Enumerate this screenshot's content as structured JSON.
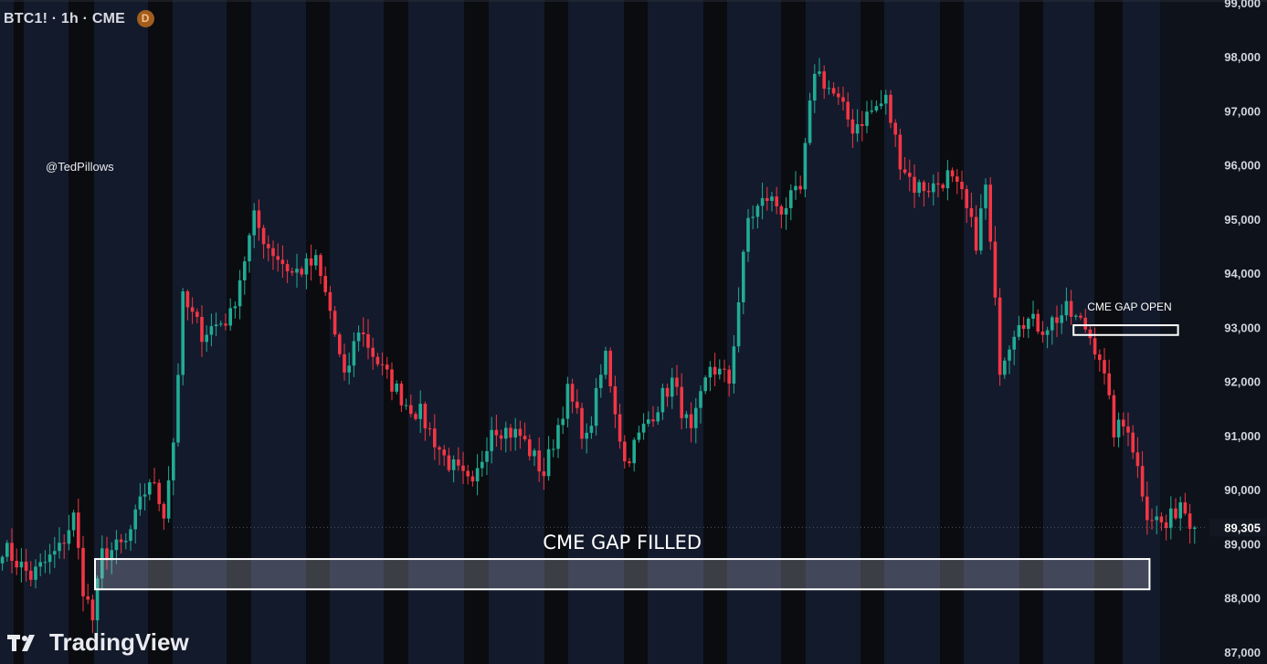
{
  "header": {
    "symbol_line": "BTC1! · 1h · CME",
    "badge": "D"
  },
  "watermark": "@TedPillows",
  "brand": {
    "name": "TradingView"
  },
  "colors": {
    "up": "#22ab94",
    "down": "#f23645",
    "background": "#0e121b",
    "session_band": "#131a2b",
    "closed_band": "#0a0c10"
  },
  "chart_data": {
    "type": "candlestick",
    "instrument": "BTC1!",
    "interval": "1h",
    "exchange": "CME",
    "y_axis": {
      "ticks": [
        99000,
        98000,
        97000,
        96000,
        95000,
        94000,
        93000,
        92000,
        91000,
        90000,
        89000,
        88000,
        87000
      ],
      "tick_labels": [
        "99,000",
        "98,000",
        "97,000",
        "96,000",
        "95,000",
        "94,000",
        "93,000",
        "92,000",
        "91,000",
        "90,000",
        "89,000",
        "88,000",
        "87,000"
      ],
      "range": [
        86780,
        99050
      ]
    },
    "last_price": {
      "value": 89305,
      "label": "89,305"
    },
    "annotations": [
      {
        "text": "CME GAP FILLED",
        "type": "box",
        "price_top": 88720,
        "price_bottom": 88160,
        "from_candle": 20,
        "to_candle": 242
      },
      {
        "text": "CME GAP OPEN",
        "type": "box",
        "price_top": 93040,
        "price_bottom": 92860,
        "from_candle": 226,
        "to_candle": 248
      }
    ],
    "anchors": [
      [
        0,
        88950
      ],
      [
        6,
        88400
      ],
      [
        12,
        88900
      ],
      [
        15,
        89500
      ],
      [
        17,
        88200
      ],
      [
        19,
        87600
      ],
      [
        21,
        88800
      ],
      [
        26,
        89000
      ],
      [
        31,
        90200
      ],
      [
        34,
        89600
      ],
      [
        36,
        90900
      ],
      [
        38,
        93500
      ],
      [
        42,
        92900
      ],
      [
        48,
        93200
      ],
      [
        53,
        95000
      ],
      [
        56,
        94500
      ],
      [
        61,
        94000
      ],
      [
        66,
        94200
      ],
      [
        69,
        93300
      ],
      [
        72,
        92000
      ],
      [
        75,
        93000
      ],
      [
        80,
        92200
      ],
      [
        85,
        91600
      ],
      [
        88,
        91400
      ],
      [
        93,
        90600
      ],
      [
        99,
        90000
      ],
      [
        103,
        91200
      ],
      [
        109,
        91000
      ],
      [
        114,
        90300
      ],
      [
        119,
        91800
      ],
      [
        123,
        90900
      ],
      [
        127,
        92500
      ],
      [
        131,
        90500
      ],
      [
        136,
        91300
      ],
      [
        141,
        92000
      ],
      [
        145,
        91000
      ],
      [
        149,
        92300
      ],
      [
        153,
        92000
      ],
      [
        157,
        95000
      ],
      [
        161,
        95400
      ],
      [
        164,
        95200
      ],
      [
        168,
        95500
      ],
      [
        171,
        97800
      ],
      [
        175,
        97300
      ],
      [
        179,
        96700
      ],
      [
        183,
        97000
      ],
      [
        186,
        97200
      ],
      [
        189,
        96100
      ],
      [
        192,
        95600
      ],
      [
        196,
        95600
      ],
      [
        199,
        95800
      ],
      [
        202,
        95400
      ],
      [
        205,
        94600
      ],
      [
        207,
        95600
      ],
      [
        210,
        92300
      ],
      [
        214,
        93200
      ],
      [
        219,
        93000
      ],
      [
        224,
        93300
      ],
      [
        228,
        93000
      ],
      [
        231,
        92500
      ],
      [
        234,
        91100
      ],
      [
        237,
        91200
      ],
      [
        241,
        89600
      ],
      [
        245,
        89300
      ],
      [
        248,
        89800
      ],
      [
        251,
        89300
      ]
    ]
  }
}
